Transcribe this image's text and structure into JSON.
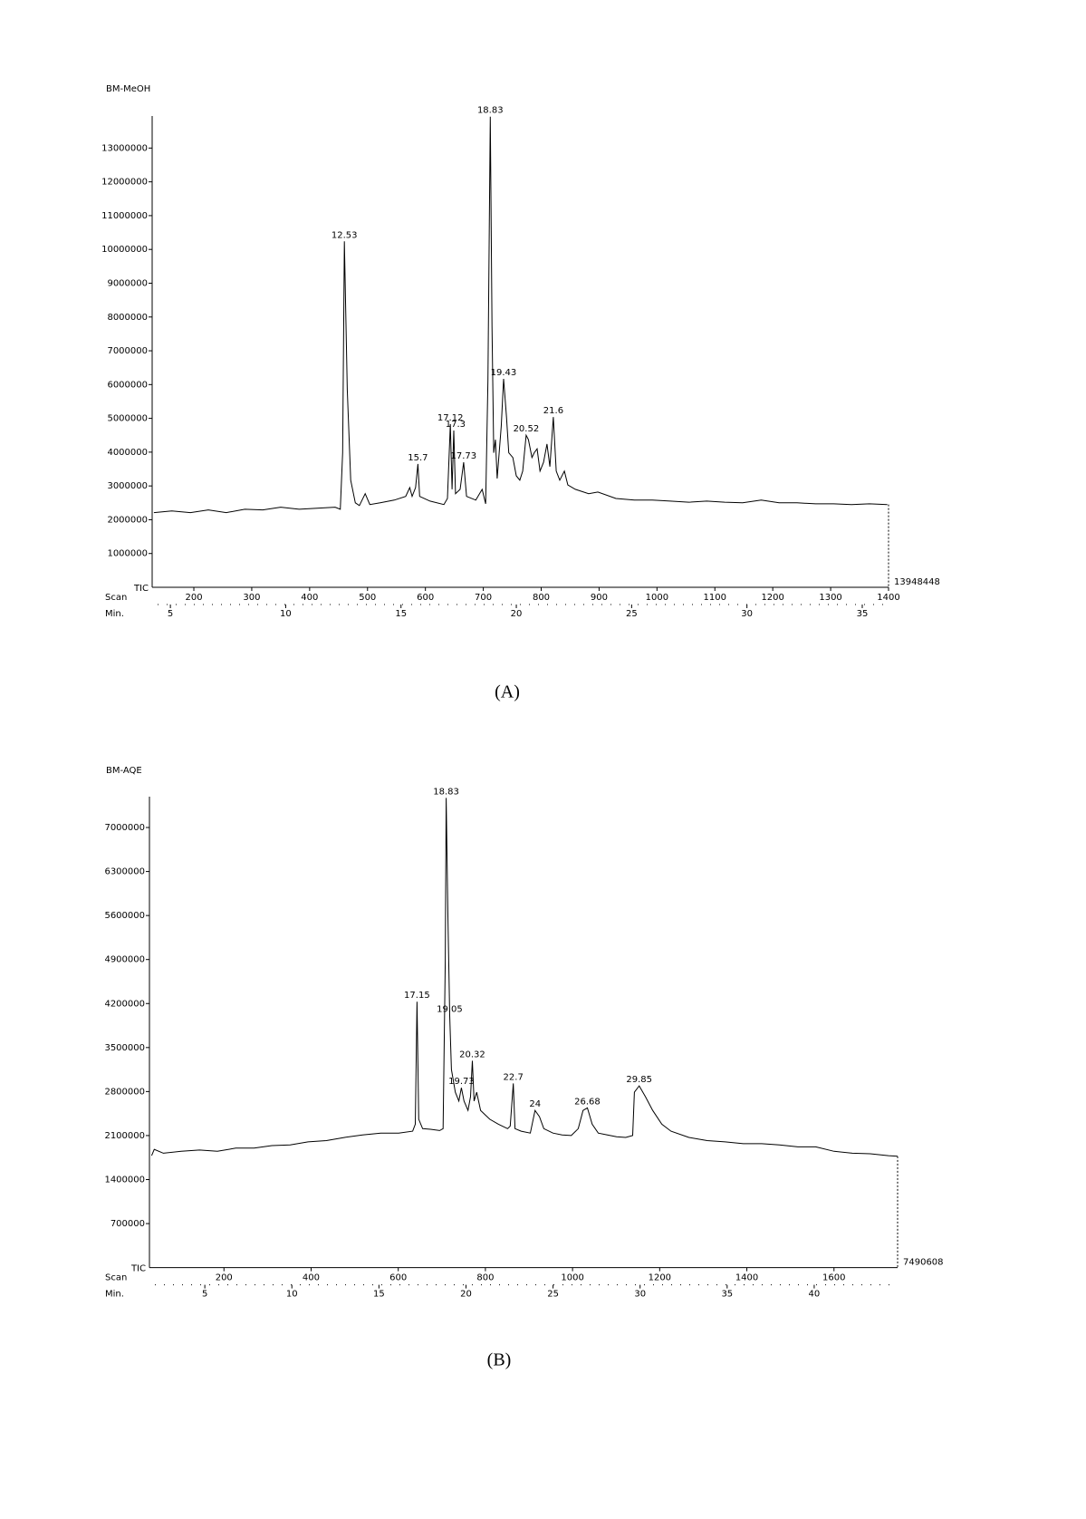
{
  "chart_data": [
    {
      "type": "line",
      "title": "BM-MeOH",
      "y_label": "TIC",
      "x_label": "Scan",
      "x2_label": "Min.",
      "caption": "(A)",
      "color": "#000000",
      "xlim": [
        128,
        1400
      ],
      "xticks": [
        200,
        300,
        400,
        500,
        600,
        700,
        800,
        900,
        1000,
        1100,
        1200,
        1300,
        1400
      ],
      "x2lim": [
        4.21,
        36.14
      ],
      "x2ticks": [
        5,
        10,
        15,
        20,
        25,
        30,
        35
      ],
      "ylim": [
        0,
        13948448
      ],
      "yticks": [
        1000000,
        2000000,
        3000000,
        4000000,
        5000000,
        6000000,
        7000000,
        8000000,
        9000000,
        10000000,
        11000000,
        12000000,
        13000000
      ],
      "x": [
        131,
        162,
        194,
        225,
        256,
        288,
        319,
        350,
        382,
        413,
        444,
        453,
        457,
        460,
        465,
        471,
        479,
        486,
        496,
        504,
        522,
        546,
        566,
        573,
        577,
        583,
        587,
        590,
        608,
        632,
        638,
        643,
        646,
        649,
        652,
        660,
        666,
        671,
        687,
        698,
        704,
        708,
        712,
        715,
        718,
        721,
        724,
        731,
        735,
        740,
        744,
        751,
        757,
        763,
        768,
        774,
        778,
        784,
        788,
        793,
        798,
        804,
        810,
        815,
        821,
        826,
        832,
        840,
        846,
        859,
        882,
        898,
        929,
        961,
        992,
        1023,
        1055,
        1086,
        1117,
        1148,
        1180,
        1211,
        1242,
        1274,
        1305,
        1336,
        1367,
        1398
      ],
      "values": [
        2210000,
        2260000,
        2210000,
        2290000,
        2210000,
        2310000,
        2290000,
        2370000,
        2310000,
        2340000,
        2370000,
        2310000,
        3980000,
        10240000,
        5850000,
        3170000,
        2500000,
        2420000,
        2770000,
        2450000,
        2500000,
        2580000,
        2690000,
        2950000,
        2690000,
        2950000,
        3650000,
        2690000,
        2550000,
        2450000,
        2630000,
        4830000,
        2900000,
        4640000,
        2770000,
        2900000,
        3700000,
        2690000,
        2580000,
        2900000,
        2470000,
        6120000,
        13930000,
        7720000,
        3980000,
        4370000,
        3220000,
        4770000,
        6170000,
        5040000,
        3980000,
        3840000,
        3300000,
        3170000,
        3440000,
        4500000,
        4370000,
        3840000,
        3980000,
        4100000,
        3440000,
        3700000,
        4240000,
        3570000,
        5040000,
        3440000,
        3170000,
        3440000,
        3030000,
        2900000,
        2770000,
        2820000,
        2630000,
        2580000,
        2580000,
        2550000,
        2520000,
        2550000,
        2520000,
        2500000,
        2580000,
        2500000,
        2500000,
        2470000,
        2470000,
        2450000,
        2470000,
        2450000
      ],
      "annotations": [
        {
          "text": "12.53",
          "x": 460,
          "y": 10240000
        },
        {
          "text": "15.7",
          "x": 587,
          "y": 3650000
        },
        {
          "text": "17.12",
          "x": 643,
          "y": 4830000
        },
        {
          "text": "17.3",
          "x": 652,
          "y": 4640000
        },
        {
          "text": "17.73",
          "x": 666,
          "y": 3700000
        },
        {
          "text": "18.83",
          "x": 712,
          "y": 13930000
        },
        {
          "text": "19.43",
          "x": 735,
          "y": 6170000
        },
        {
          "text": "20.52",
          "x": 774,
          "y": 4500000
        },
        {
          "text": "21.6",
          "x": 821,
          "y": 5040000
        }
      ]
    },
    {
      "type": "line",
      "title": "BM-AQE",
      "y_label": "TIC",
      "x_label": "Scan",
      "x2_label": "Min.",
      "caption": "(B)",
      "color": "#000000",
      "xlim": [
        29,
        1746
      ],
      "xticks": [
        200,
        400,
        600,
        800,
        1000,
        1200,
        1400,
        1600
      ],
      "x2lim": [
        1.82,
        44.79
      ],
      "x2ticks": [
        5,
        10,
        15,
        20,
        25,
        30,
        35,
        40
      ],
      "ylim": [
        0,
        7490608
      ],
      "yticks": [
        700000,
        1400000,
        2100000,
        2800000,
        3500000,
        4200000,
        4900000,
        5600000,
        6300000,
        7000000
      ],
      "x": [
        34,
        40,
        61,
        102,
        144,
        185,
        227,
        269,
        310,
        352,
        393,
        435,
        477,
        518,
        560,
        601,
        633,
        639,
        643,
        647,
        656,
        674,
        695,
        703,
        708,
        710,
        714,
        718,
        722,
        731,
        739,
        745,
        751,
        760,
        766,
        770,
        774,
        780,
        789,
        810,
        830,
        851,
        857,
        864,
        868,
        882,
        903,
        914,
        924,
        934,
        955,
        976,
        997,
        1013,
        1024,
        1034,
        1045,
        1059,
        1080,
        1101,
        1122,
        1138,
        1142,
        1153,
        1167,
        1184,
        1205,
        1226,
        1267,
        1309,
        1350,
        1392,
        1434,
        1475,
        1517,
        1558,
        1600,
        1642,
        1683,
        1725,
        1746
      ],
      "values": [
        1780000,
        1880000,
        1820000,
        1850000,
        1870000,
        1850000,
        1900000,
        1900000,
        1940000,
        1950000,
        2000000,
        2020000,
        2070000,
        2110000,
        2140000,
        2140000,
        2170000,
        2280000,
        4230000,
        2360000,
        2210000,
        2200000,
        2180000,
        2210000,
        4880000,
        7470000,
        5600000,
        4010000,
        3150000,
        2790000,
        2650000,
        2860000,
        2650000,
        2500000,
        2720000,
        3290000,
        2650000,
        2790000,
        2500000,
        2360000,
        2280000,
        2210000,
        2250000,
        2930000,
        2210000,
        2170000,
        2140000,
        2500000,
        2400000,
        2210000,
        2140000,
        2110000,
        2100000,
        2210000,
        2500000,
        2540000,
        2280000,
        2140000,
        2110000,
        2080000,
        2070000,
        2100000,
        2790000,
        2890000,
        2720000,
        2500000,
        2280000,
        2170000,
        2070000,
        2020000,
        2000000,
        1970000,
        1970000,
        1950000,
        1920000,
        1920000,
        1850000,
        1820000,
        1810000,
        1780000,
        1770000
      ],
      "annotations": [
        {
          "text": "17.15",
          "x": 643,
          "y": 4230000
        },
        {
          "text": "18.83",
          "x": 710,
          "y": 7470000
        },
        {
          "text": "19.05",
          "x": 718,
          "y": 4010000
        },
        {
          "text": "19.73",
          "x": 745,
          "y": 2860000
        },
        {
          "text": "20.32",
          "x": 770,
          "y": 3290000
        },
        {
          "text": "22.7",
          "x": 864,
          "y": 2930000
        },
        {
          "text": "24",
          "x": 914,
          "y": 2500000
        },
        {
          "text": "26.68",
          "x": 1034,
          "y": 2540000
        },
        {
          "text": "29.85",
          "x": 1153,
          "y": 2890000
        }
      ]
    }
  ]
}
